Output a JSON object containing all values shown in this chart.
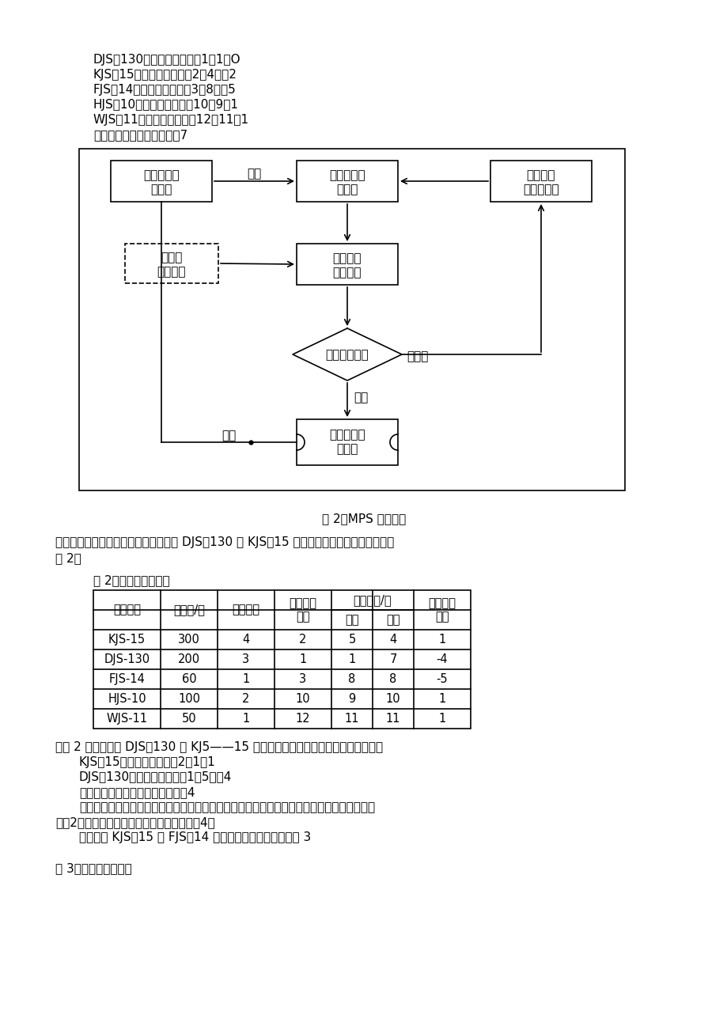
{
  "bg_color": "#ffffff",
  "text_color": "#000000",
  "top_lines": [
    "DJS－130：实际优先顺序＝1－1＝O",
    "KJS－15：实施优先顺序＝2－4＝－2",
    "FJS－14：实际优先顺序＝3－8＝－5",
    "HJS－10：实际优先顺序＝10－9＝1",
    "WJS－11：实际优行顺序＝12－11＝1",
    "实际优先顺序负数合计＝－7"
  ],
  "fig_caption": "图 2：MPS 模拟过程",
  "para1_line1": "这是一种产品生产组合顺序。若将其中 DJS－130 与 KJS－15 两产品调换一下顺序，可以得到",
  "para1_line2": "表 2。",
  "table2_title": "表 2：模拟过程（二）",
  "table2_rows": [
    [
      "KJS-15",
      "300",
      "4",
      "2",
      "5",
      "4",
      "1"
    ],
    [
      "DJS-130",
      "200",
      "3",
      "1",
      "1",
      "7",
      "-4"
    ],
    [
      "FJS-14",
      "60",
      "1",
      "3",
      "8",
      "8",
      "-5"
    ],
    [
      "HJS-10",
      "100",
      "2",
      "10",
      "9",
      "10",
      "1"
    ],
    [
      "WJS-11",
      "50",
      "1",
      "12",
      "11",
      "11",
      "1"
    ]
  ],
  "para2_lines": [
    [
      70,
      "从表 2 中可以得到 DJS－130 与 KJ5——15 调换后产品实际优先顺序负数合计値为："
    ],
    [
      100,
      "KJS－15：实际优先顺序＝2－1＝1"
    ],
    [
      100,
      "DJS－130：实际优先顺序；1－5＝－4"
    ],
    [
      100,
      "两产品实际优先顺序负数合计＝－4"
    ],
    [
      100,
      "此种产品生产组合顺序要比表一中产品生产组合顺序差，因为调换前实际优先顺序负数合计値"
    ],
    [
      70,
      "为－2，调换后实际优先顺序负数合计値为－4。"
    ],
    [
      100,
      "若将产品 KJS－15 与 FJS－14 调换一下顺序，可以得到表 3"
    ]
  ],
  "table3_title": "表 3：模拟过程（三）"
}
